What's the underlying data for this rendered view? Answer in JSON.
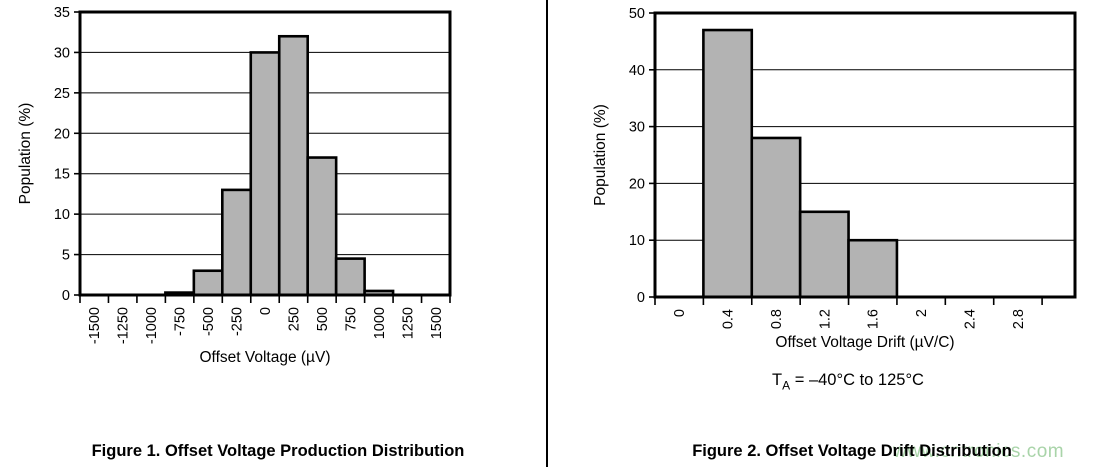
{
  "page": {
    "background": "#ffffff",
    "divider_color": "#000000"
  },
  "figures": [
    {
      "caption": "Figure 1. Offset Voltage Production Distribution"
    },
    {
      "caption": "Figure 2. Offset Voltage Drift Distribution",
      "condition": {
        "base": "T",
        "sub": "A",
        "rest": " = –40°C to 125°C"
      }
    }
  ],
  "watermark": {
    "text": "www.cntronics.com",
    "color": "#a9d4a9"
  },
  "chart_data": [
    {
      "type": "bar",
      "title": "",
      "categories": [
        "-1500",
        "-1250",
        "-1000",
        "-750",
        "-500",
        "-250",
        "0",
        "250",
        "500",
        "750",
        "1000",
        "1250",
        "1500"
      ],
      "values": [
        0,
        0,
        0,
        0.3,
        3,
        13,
        30,
        32,
        17,
        4.5,
        0.5,
        0,
        0
      ],
      "xlabel": "Offset Voltage (µV)",
      "ylabel": "Population (%)",
      "ylim": [
        0,
        35
      ],
      "ytick_step": 5,
      "grid": true,
      "legend": "none",
      "bar_color": "#b3b3b3",
      "bar_border": "#000000",
      "x_tail_slots": 0
    },
    {
      "type": "bar",
      "title": "",
      "categories": [
        "0",
        "0.4",
        "0.8",
        "1.2",
        "1.6",
        "2",
        "2.4",
        "2.8"
      ],
      "values": [
        0,
        47,
        28,
        15,
        10,
        0,
        0,
        0
      ],
      "xlabel": "Offset Voltage Drift (µV/C)",
      "ylabel": "Population (%)",
      "ylim": [
        0,
        50
      ],
      "ytick_step": 10,
      "grid": true,
      "legend": "none",
      "bar_color": "#b3b3b3",
      "bar_border": "#000000",
      "x_tail_slots": 0.68
    }
  ]
}
